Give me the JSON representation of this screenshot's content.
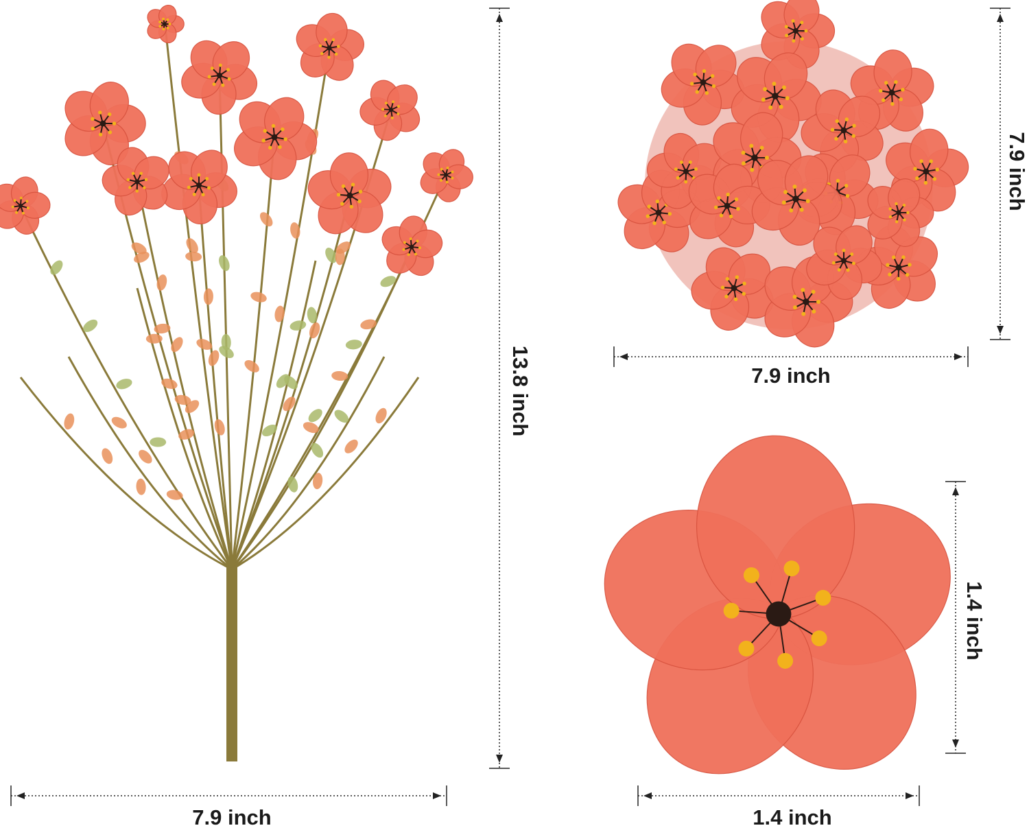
{
  "colors": {
    "petal": "#f0705a",
    "petal_dark": "#d8533f",
    "center": "#2a1a14",
    "stamen": "#f2b21c",
    "stem": "#8a7a3a",
    "leaf": "#e9905a",
    "leaf_green": "#a9b86a",
    "line": "#222222"
  },
  "bouquet": {
    "height_label": "13.8 inch",
    "width_label": "7.9 inch"
  },
  "top_view": {
    "height_label": "7.9 inch",
    "width_label": "7.9 inch"
  },
  "single_flower": {
    "height_label": "1.4 inch",
    "width_label": "1.4 inch"
  }
}
